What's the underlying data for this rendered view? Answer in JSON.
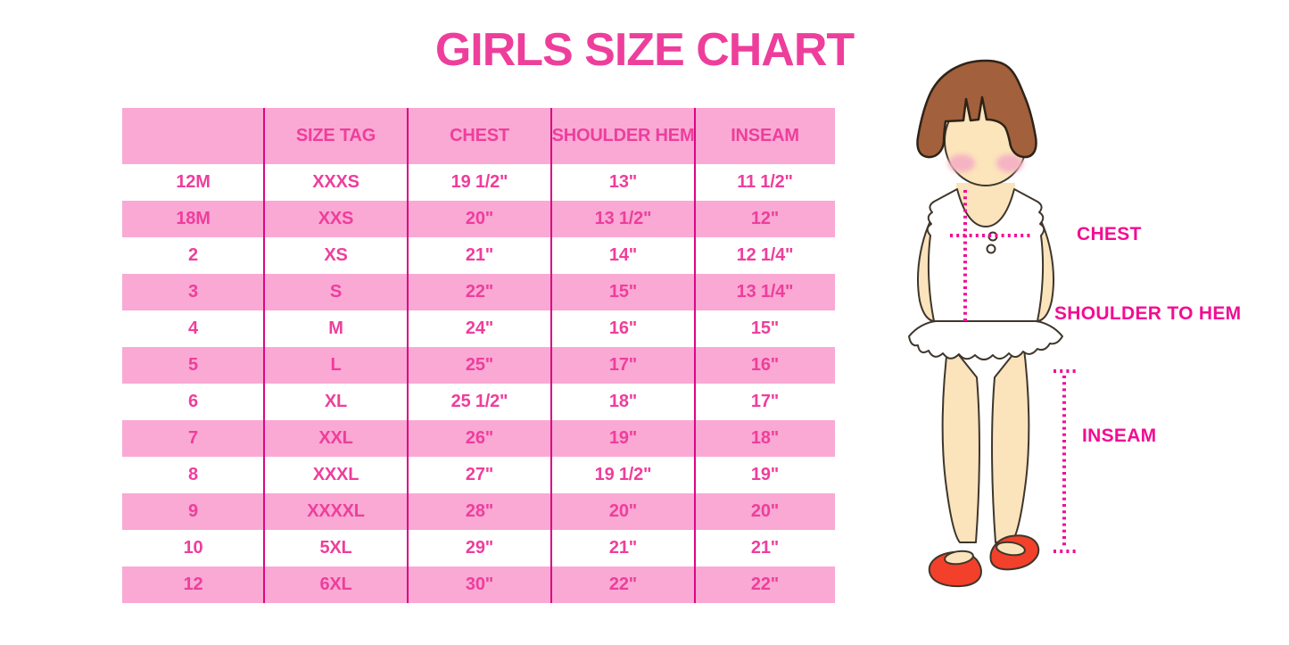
{
  "page_title": "GIRLS SIZE CHART",
  "chart_data": {
    "type": "table",
    "title": "GIRLS SIZE CHART",
    "columns": [
      "",
      "SIZE TAG",
      "CHEST",
      "SHOULDER HEM",
      "INSEAM"
    ],
    "rows": [
      [
        "12M",
        "XXXS",
        "19 1/2\"",
        "13\"",
        "11 1/2\""
      ],
      [
        "18M",
        "XXS",
        "20\"",
        "13 1/2\"",
        "12\""
      ],
      [
        "2",
        "XS",
        "21\"",
        "14\"",
        "12 1/4\""
      ],
      [
        "3",
        "S",
        "22\"",
        "15\"",
        "13 1/4\""
      ],
      [
        "4",
        "M",
        "24\"",
        "16\"",
        "15\""
      ],
      [
        "5",
        "L",
        "25\"",
        "17\"",
        "16\""
      ],
      [
        "6",
        "XL",
        "25 1/2\"",
        "18\"",
        "17\""
      ],
      [
        "7",
        "XXL",
        "26\"",
        "19\"",
        "18\""
      ],
      [
        "8",
        "XXXL",
        "27\"",
        "19 1/2\"",
        "19\""
      ],
      [
        "9",
        "XXXXL",
        "28\"",
        "20\"",
        "20\""
      ],
      [
        "10",
        "5XL",
        "29\"",
        "21\"",
        "21\""
      ],
      [
        "12",
        "6XL",
        "30\"",
        "22\"",
        "22\""
      ]
    ],
    "row_stripe_pattern": [
      "white",
      "pink"
    ],
    "legend_position": "none",
    "grid": "vertical-dividers-only"
  },
  "figure": {
    "labels": {
      "chest": "CHEST",
      "shoulder_to_hem": "SHOULDER TO HEM",
      "inseam": "INSEAM"
    }
  },
  "colors": {
    "title_pink": "#EE3E9C",
    "band_pink": "#F9A9D4",
    "cell_text_pink": "#EE3E9C",
    "divider_magenta": "#DB0783",
    "measure_label_magenta": "#F20D93",
    "hair_brown": "#A2603C",
    "skin": "#FBE3BC",
    "blush": "#F5B3C3",
    "shoe_red": "#F2402A",
    "garment_white": "#FFFFFF"
  }
}
